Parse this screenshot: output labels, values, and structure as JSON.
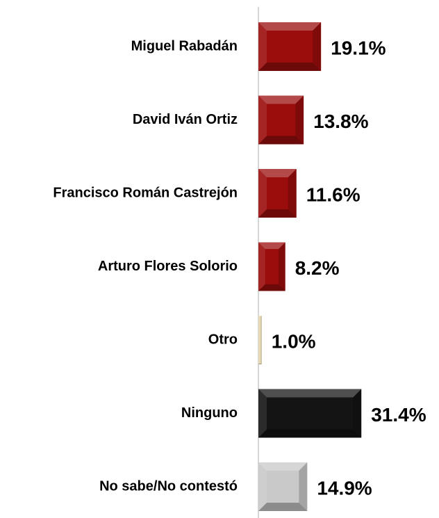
{
  "chart_data": {
    "type": "bar",
    "orientation": "horizontal",
    "categories": [
      "Miguel Rabadán",
      "David Iván Ortiz",
      "Francisco Román Castrejón",
      "Arturo Flores Solorio",
      "Otro",
      "Ninguno",
      "No sabe/No contestó"
    ],
    "values": [
      19.1,
      13.8,
      11.6,
      8.2,
      1,
      31.4,
      14.9
    ],
    "value_labels": [
      "19.1%",
      "13.8%",
      "11.6%",
      "8.2%",
      "1.0%",
      "31.4%",
      "14.9%"
    ],
    "colors": [
      "#9b0d0d",
      "#9b0d0d",
      "#9b0d0d",
      "#9b0d0d",
      "#e8d9b5",
      "#141414",
      "#c9c9c9"
    ]
  }
}
